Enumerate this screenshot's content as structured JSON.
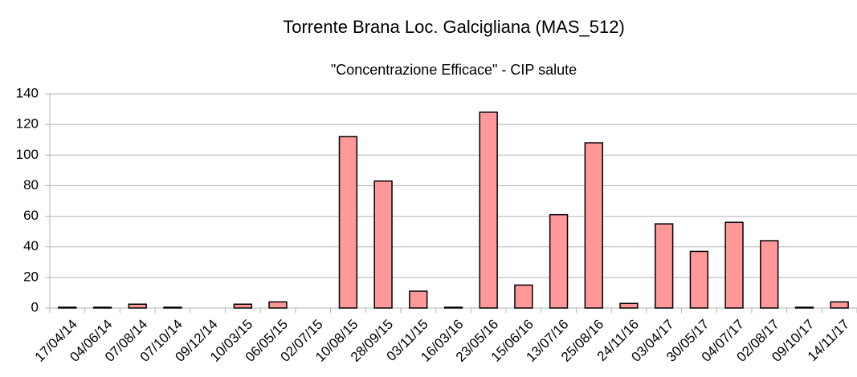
{
  "chart_data": {
    "type": "bar",
    "title": "Torrente Brana Loc. Galcigliana  (MAS_512)",
    "subtitle": "\"Concentrazione Efficace\" - CIP salute",
    "categories": [
      "17/04/14",
      "04/06/14",
      "07/08/14",
      "07/10/14",
      "09/12/14",
      "10/03/15",
      "06/05/15",
      "02/07/15",
      "10/08/15",
      "28/09/15",
      "03/11/15",
      "16/03/16",
      "23/05/16",
      "15/06/16",
      "13/07/16",
      "25/08/16",
      "24/11/16",
      "03/04/17",
      "30/05/17",
      "04/07/17",
      "02/08/17",
      "09/10/17",
      "14/11/17"
    ],
    "values": [
      0.5,
      0.5,
      2.5,
      0.5,
      0,
      2.5,
      4,
      0,
      112,
      83,
      11,
      0.5,
      128,
      15,
      61,
      108,
      3,
      55,
      37,
      56,
      44,
      0.5,
      4
    ],
    "color": "#ff9999",
    "ylim": [
      0,
      140
    ],
    "yticks": [
      0,
      20,
      40,
      60,
      80,
      100,
      120,
      140
    ],
    "grid": true
  }
}
